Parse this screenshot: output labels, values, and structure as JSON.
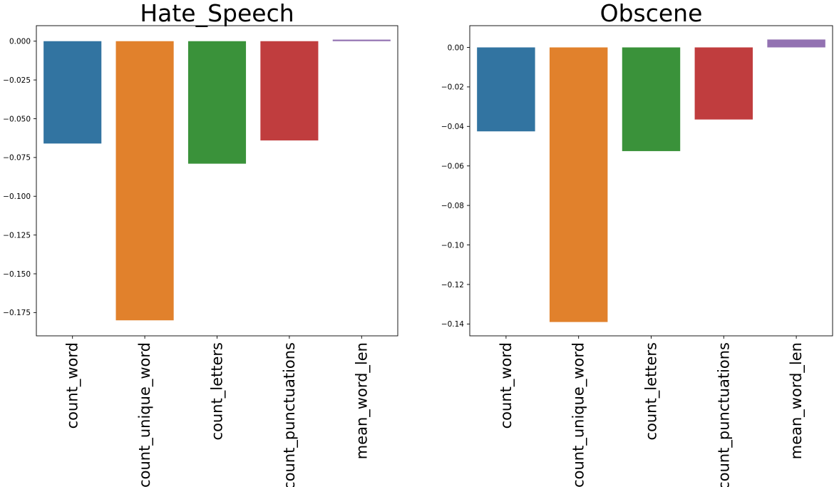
{
  "chart_data": [
    {
      "type": "bar",
      "title": "Hate_Speech",
      "categories": [
        "count_word",
        "count_unique_word",
        "count_letters",
        "count_punctuations",
        "mean_word_len"
      ],
      "values": [
        -0.066,
        -0.18,
        -0.079,
        -0.064,
        0.001
      ],
      "colors": [
        "#3274a1",
        "#e1812c",
        "#3a923a",
        "#c03d3e",
        "#9372b2"
      ],
      "ylim": [
        -0.19,
        0.01
      ],
      "yticks": [
        0.0,
        -0.025,
        -0.05,
        -0.075,
        -0.1,
        -0.125,
        -0.15,
        -0.175
      ],
      "ytick_labels": [
        "0.000",
        "−0.025",
        "−0.050",
        "−0.075",
        "−0.100",
        "−0.125",
        "−0.150",
        "−0.175"
      ],
      "xlabel": "",
      "ylabel": "",
      "grid": false
    },
    {
      "type": "bar",
      "title": "Obscene",
      "categories": [
        "count_word",
        "count_unique_word",
        "count_letters",
        "count_punctuations",
        "mean_word_len"
      ],
      "values": [
        -0.0425,
        -0.139,
        -0.0525,
        -0.0365,
        0.004
      ],
      "colors": [
        "#3274a1",
        "#e1812c",
        "#3a923a",
        "#c03d3e",
        "#9372b2"
      ],
      "ylim": [
        -0.146,
        0.011
      ],
      "yticks": [
        0.0,
        -0.02,
        -0.04,
        -0.06,
        -0.08,
        -0.1,
        -0.12,
        -0.14
      ],
      "ytick_labels": [
        "0.00",
        "−0.02",
        "−0.04",
        "−0.06",
        "−0.08",
        "−0.10",
        "−0.12",
        "−0.14"
      ],
      "xlabel": "",
      "ylabel": "",
      "grid": false
    }
  ]
}
